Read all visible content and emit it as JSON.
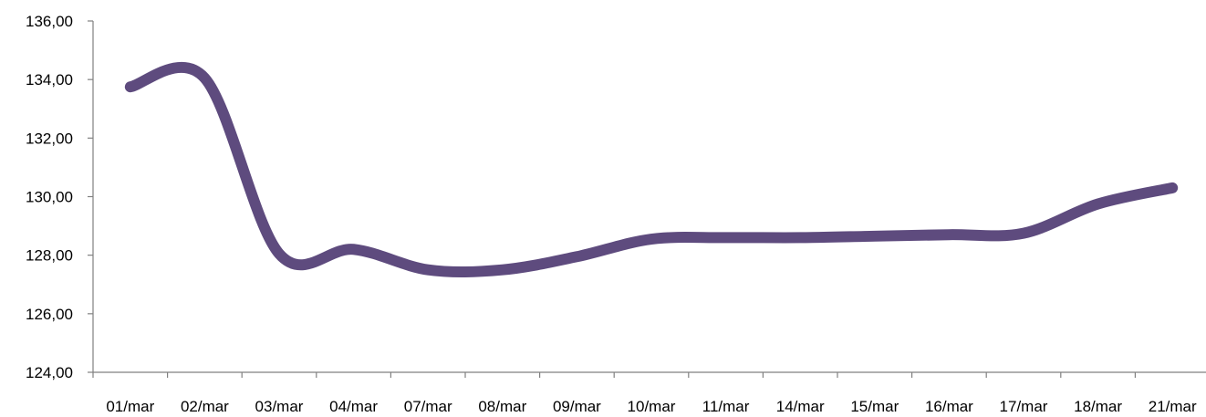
{
  "chart_data": {
    "type": "line",
    "title": "",
    "xlabel": "",
    "ylabel": "",
    "categories": [
      "01/mar",
      "02/mar",
      "03/mar",
      "04/mar",
      "07/mar",
      "08/mar",
      "09/mar",
      "10/mar",
      "11/mar",
      "14/mar",
      "15/mar",
      "16/mar",
      "17/mar",
      "18/mar",
      "21/mar"
    ],
    "series": [
      {
        "values": [
          133.75,
          134.05,
          128.05,
          128.2,
          127.5,
          127.5,
          127.95,
          128.55,
          128.6,
          128.6,
          128.65,
          128.7,
          128.75,
          129.75,
          130.3
        ]
      }
    ],
    "ylim": [
      124,
      136
    ],
    "yticks": [
      "124,00",
      "126,00",
      "128,00",
      "130,00",
      "132,00",
      "134,00",
      "136,00"
    ],
    "line_color": "#5E4B7E",
    "grid": false,
    "legend": "none"
  }
}
